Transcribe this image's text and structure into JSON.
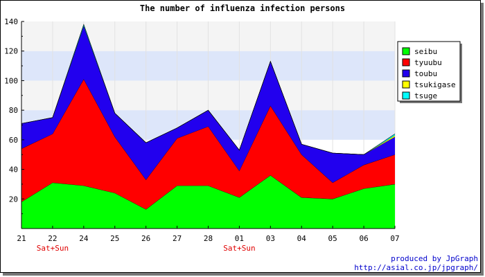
{
  "chart_data": {
    "type": "area",
    "stacked": true,
    "title": "The number of influenza infection persons",
    "xlabel": "",
    "ylabel": "",
    "categories": [
      "21",
      "22",
      "24",
      "25",
      "26",
      "27",
      "28",
      "01",
      "03",
      "04",
      "05",
      "06",
      "07"
    ],
    "category_notes": {
      "1": "Sat+Sun",
      "7": "Sat+Sun"
    },
    "ylim": [
      0,
      140
    ],
    "yticks": [
      20,
      40,
      60,
      80,
      100,
      120,
      140
    ],
    "grid": true,
    "legend_position": "right",
    "series": [
      {
        "name": "seibu",
        "color": "#00ff00",
        "values": [
          18,
          31,
          29,
          24,
          13,
          29,
          29,
          21,
          36,
          21,
          20,
          27,
          30
        ]
      },
      {
        "name": "tyuubu",
        "color": "#ff0000",
        "values": [
          36,
          33,
          72,
          38,
          20,
          32,
          40,
          18,
          47,
          29,
          11,
          16,
          20
        ]
      },
      {
        "name": "toubu",
        "color": "#2200ee",
        "values": [
          17,
          11,
          36,
          16,
          25,
          7,
          11,
          14,
          30,
          7,
          20,
          7,
          12
        ]
      },
      {
        "name": "tsukigase",
        "color": "#ffff00",
        "values": [
          0,
          0,
          0,
          0,
          0,
          0,
          0,
          0,
          0,
          0,
          0,
          0,
          1
        ]
      },
      {
        "name": "tsuge",
        "color": "#00ffff",
        "values": [
          0,
          0,
          1,
          0,
          0,
          0,
          0,
          0,
          0,
          0,
          0,
          0,
          1
        ]
      }
    ]
  },
  "credit": {
    "line1": "produced by JpGraph",
    "line2": "http://asial.co.jp/jpgraph/"
  }
}
